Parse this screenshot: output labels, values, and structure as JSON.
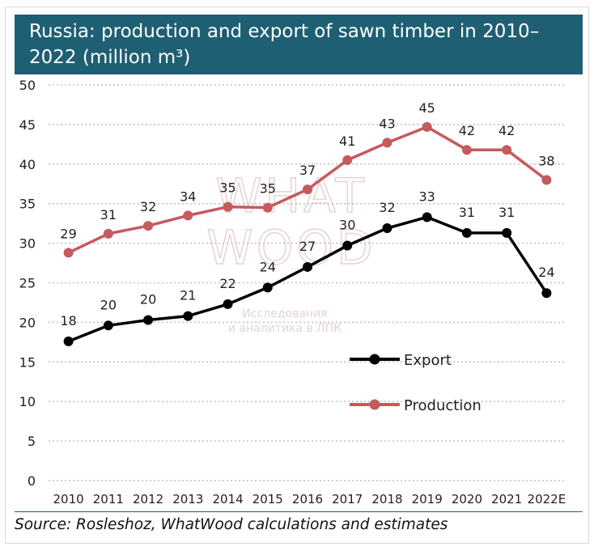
{
  "title": "Russia: production and export of sawn timber in 2010–2022 (million m³)",
  "source": "Source: Rosleshoz, WhatWood calculations and estimates",
  "watermark": {
    "lines": [
      "WHAT",
      "WOOD"
    ],
    "sub": [
      "Исследования",
      "и аналитика в ЛПК"
    ]
  },
  "colors": {
    "title_bg": "#1f5f73",
    "export": "#000000",
    "production": "#c55a5f",
    "grid": "#bfbfbf"
  },
  "chart_data": {
    "type": "line",
    "title": "Russia: production and export of sawn timber in 2010–2022 (million m³)",
    "categories": [
      "2010",
      "2011",
      "2012",
      "2013",
      "2014",
      "2015",
      "2016",
      "2017",
      "2018",
      "2019",
      "2020",
      "2021",
      "2022E"
    ],
    "ylim": [
      0,
      50
    ],
    "yticks": [
      0,
      5,
      10,
      15,
      20,
      25,
      30,
      35,
      40,
      45,
      50
    ],
    "grid": true,
    "legend_position": "right-middle",
    "series": [
      {
        "name": "Export",
        "values": [
          17.6,
          19.6,
          20.3,
          20.8,
          22.3,
          24.4,
          27.0,
          29.7,
          31.9,
          33.3,
          31.3,
          31.3,
          23.7
        ],
        "labels": [
          "18",
          "20",
          "20",
          "21",
          "22",
          "24",
          "27",
          "30",
          "32",
          "33",
          "31",
          "31",
          "24"
        ]
      },
      {
        "name": "Production",
        "values": [
          28.8,
          31.2,
          32.2,
          33.5,
          34.6,
          34.5,
          36.8,
          40.5,
          42.7,
          44.7,
          41.8,
          41.8,
          38.0
        ],
        "labels": [
          "29",
          "31",
          "32",
          "34",
          "35",
          "35",
          "37",
          "41",
          "43",
          "45",
          "42",
          "42",
          "38"
        ]
      }
    ]
  }
}
